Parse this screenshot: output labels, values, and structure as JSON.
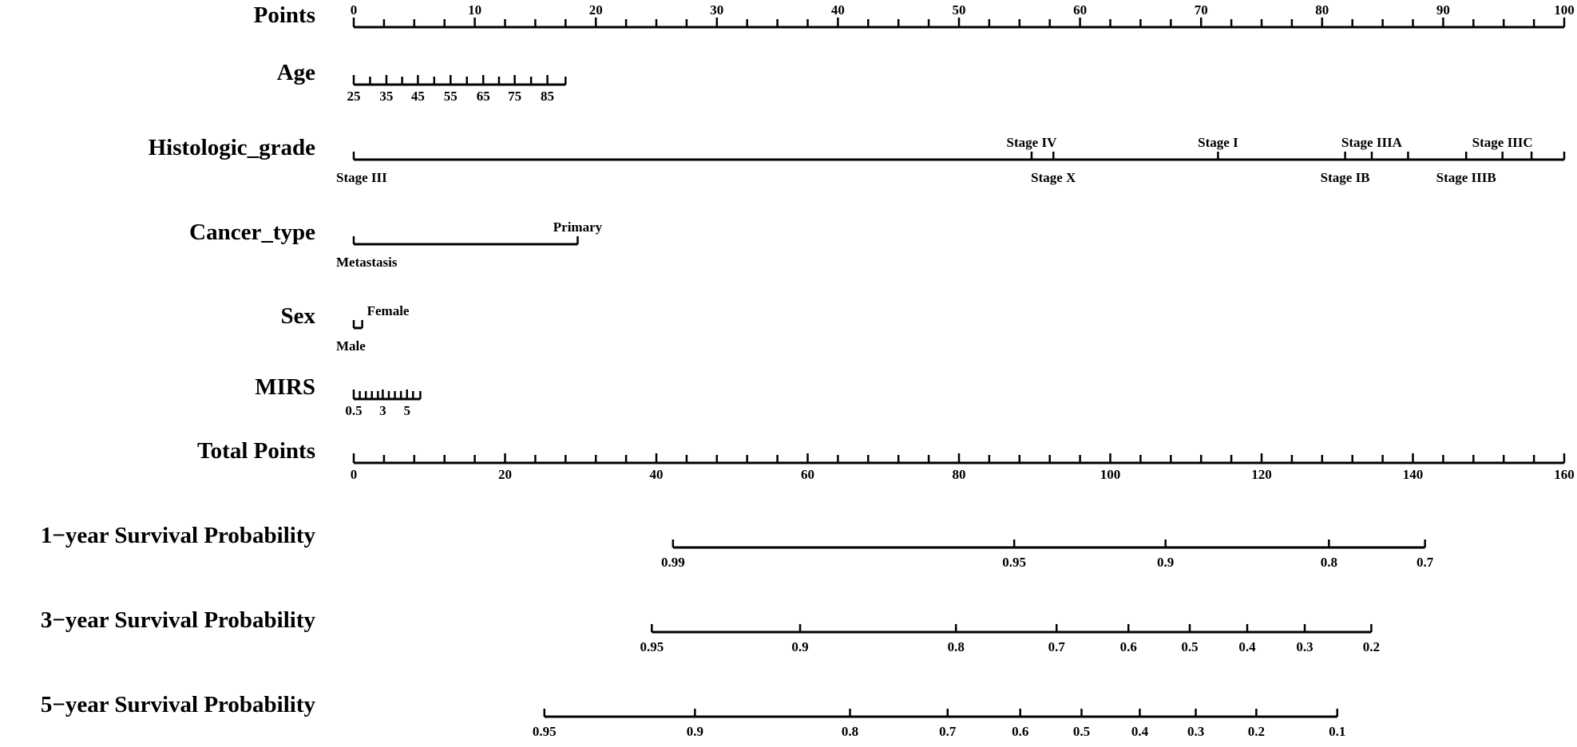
{
  "chart_data": {
    "type": "nomogram",
    "rows": [
      {
        "name": "Points",
        "kind": "numeric",
        "min": 0,
        "max": 100,
        "labels": [
          "0",
          "10",
          "20",
          "30",
          "40",
          "50",
          "60",
          "70",
          "80",
          "90",
          "100"
        ],
        "label_values": [
          0,
          10,
          20,
          30,
          40,
          50,
          60,
          70,
          80,
          90,
          100
        ],
        "minor_step": 2.5,
        "label_side": "above"
      },
      {
        "name": "Age",
        "kind": "numeric",
        "labels": [
          "25",
          "35",
          "45",
          "55",
          "65",
          "75",
          "85"
        ],
        "label_values": [
          0,
          2.7,
          5.3,
          8.0,
          10.7,
          13.3,
          16.0
        ],
        "minor_values": [
          0,
          1.35,
          2.7,
          4.0,
          5.3,
          6.65,
          8.0,
          9.35,
          10.7,
          12.0,
          13.3,
          14.65,
          16.0,
          17.5
        ],
        "label_side": "below"
      },
      {
        "name": "Histologic_grade",
        "kind": "categorical",
        "levels": [
          {
            "label": "Stage III",
            "points": 0,
            "side": "below"
          },
          {
            "label": "Stage IV",
            "points": 56,
            "side": "above"
          },
          {
            "label": "Stage X",
            "points": 57.8,
            "side": "below"
          },
          {
            "label": "Stage I",
            "points": 71.4,
            "side": "above"
          },
          {
            "label": "Stage IB",
            "points": 81.9,
            "side": "below"
          },
          {
            "label": "Stage IIIA",
            "points": 84.1,
            "side": "above"
          },
          {
            "label": "Stage IIIA",
            "points": 87.1,
            "side": "none"
          },
          {
            "label": "Stage IIIB",
            "points": 91.9,
            "side": "below"
          },
          {
            "label": "Stage IIIC",
            "points": 94.9,
            "side": "above"
          },
          {
            "label": "",
            "points": 97.3,
            "side": "none"
          },
          {
            "label": "",
            "points": 100,
            "side": "none"
          }
        ]
      },
      {
        "name": "Cancer_type",
        "kind": "categorical",
        "levels": [
          {
            "label": "Metastasis",
            "points": 0,
            "side": "below"
          },
          {
            "label": "Primary",
            "points": 18.5,
            "side": "above"
          }
        ]
      },
      {
        "name": "Sex",
        "kind": "categorical",
        "levels": [
          {
            "label": "Male",
            "points": 0,
            "side": "below"
          },
          {
            "label": "Female",
            "points": 0.7,
            "side": "above"
          }
        ]
      },
      {
        "name": "MIRS",
        "kind": "numeric",
        "labels": [
          "0.5",
          "3",
          "5"
        ],
        "label_values": [
          0,
          2.4,
          4.4
        ],
        "minor_values": [
          0,
          0.5,
          1.0,
          1.5,
          2.0,
          2.4,
          2.9,
          3.4,
          3.9,
          4.4,
          4.9,
          5.5
        ],
        "label_side": "below"
      },
      {
        "name": "Total Points",
        "kind": "numeric",
        "labels": [
          "0",
          "20",
          "40",
          "60",
          "80",
          "100",
          "120",
          "140",
          "160"
        ],
        "label_values": [
          0,
          20,
          40,
          60,
          80,
          100,
          120,
          140,
          160
        ],
        "scale_max": 160,
        "minor_step": 4,
        "label_side": "below"
      },
      {
        "name": "1−year Survival Probability",
        "kind": "probability",
        "labels": [
          "0.99",
          "0.95",
          "0.9",
          "0.8",
          "0.7"
        ],
        "total_points": [
          42.2,
          87.3,
          107.3,
          128.9,
          141.6
        ],
        "label_side": "below"
      },
      {
        "name": "3−year Survival Probability",
        "kind": "probability",
        "labels": [
          "0.95",
          "0.9",
          "0.8",
          "0.7",
          "0.6",
          "0.5",
          "0.4",
          "0.3",
          "0.2"
        ],
        "total_points": [
          39.4,
          59.0,
          79.6,
          92.9,
          102.4,
          110.5,
          118.1,
          125.7,
          134.5
        ],
        "label_side": "below"
      },
      {
        "name": "5−year Survival Probability",
        "kind": "probability",
        "labels": [
          "0.95",
          "0.9",
          "0.8",
          "0.7",
          "0.6",
          "0.5",
          "0.4",
          "0.3",
          "0.2",
          "0.1"
        ],
        "total_points": [
          25.2,
          45.1,
          65.6,
          78.5,
          88.1,
          96.2,
          103.9,
          111.3,
          119.3,
          130.0
        ],
        "label_side": "below"
      }
    ]
  }
}
